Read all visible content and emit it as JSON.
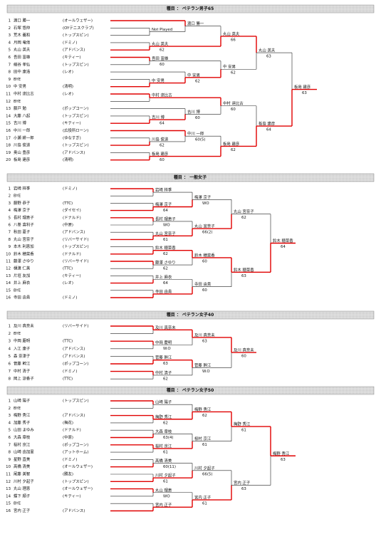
{
  "sections": [
    {
      "header": "種目 ： ベテラン男子65",
      "players": [
        {
          "no": 1,
          "name": "渡口 勝一",
          "club": "(オールウェザー)"
        },
        {
          "no": 2,
          "name": "石塚 悠仲",
          "club": "(OYテニスクラブ)"
        },
        {
          "no": 3,
          "name": "荒木 義和",
          "club": "(トップスピン)"
        },
        {
          "no": 4,
          "name": "月岡 竜他",
          "club": "(ドミノ)"
        },
        {
          "no": 5,
          "name": "丸山 英夫",
          "club": "(アドバンス)"
        },
        {
          "no": 6,
          "name": "吾田 富雄",
          "club": "(キティー)"
        },
        {
          "no": 7,
          "name": "細谷 孝弘",
          "club": "(トップスピン)"
        },
        {
          "no": 8,
          "name": "田中 康浩",
          "club": "(レオ)"
        },
        {
          "no": 9,
          "name": "BYE"
        },
        {
          "no": 10,
          "name": "中 安男",
          "club": "(清明)"
        },
        {
          "no": 11,
          "name": "中村 達比古",
          "club": "(レオ)"
        },
        {
          "no": 12,
          "name": "BYE"
        },
        {
          "no": 13,
          "name": "藤戸 勉",
          "club": "(ポップコーン)"
        },
        {
          "no": 14,
          "name": "大藤 八起",
          "club": "(トップスピン)"
        },
        {
          "no": 15,
          "name": "吉川 博",
          "club": "(キティー)"
        },
        {
          "no": 16,
          "name": "中川 一郎",
          "club": "(広役所ローン)"
        },
        {
          "no": 17,
          "name": "小瀬 耕一郎",
          "club": "(ゆなすぎ)"
        },
        {
          "no": 18,
          "name": "川島 俊道",
          "club": "(トップスピン)"
        },
        {
          "no": 19,
          "name": "奥山 豊彦",
          "club": "(アドバンス)"
        },
        {
          "no": 20,
          "name": "板島 建彦",
          "club": "(清明)"
        }
      ],
      "matches": [
        {
          "name": "Not Played"
        },
        {
          "name": "渡口 勝一"
        },
        {
          "name": "丸山 英夫",
          "score": "62"
        },
        {
          "name": "丸山 英夫",
          "score": "66"
        },
        {
          "name": "吾田 富雄",
          "score": "60"
        },
        {
          "name": "中 安男"
        },
        {
          "name": "中 安男",
          "score": "62"
        },
        {
          "name": "中 安男",
          "score": "62"
        },
        {
          "name": "丸山 英夫",
          "score": "63"
        },
        {
          "name": "中村 達比古"
        },
        {
          "name": "吉川 博",
          "score": "64"
        },
        {
          "name": "吉川 博",
          "score": "60"
        },
        {
          "name": "中村 達比古",
          "score": "60"
        },
        {
          "name": "川島 俊道",
          "score": "62"
        },
        {
          "name": "中川 一郎",
          "score": "60(5)"
        },
        {
          "name": "板島 建彦",
          "score": "60"
        },
        {
          "name": "板島 建彦",
          "score": "62"
        },
        {
          "name": "板島 建彦",
          "score": "64"
        },
        {
          "name": "板島 建彦",
          "score": "63"
        }
      ]
    },
    {
      "header": "種目 ： 一般女子",
      "players": [
        {
          "no": 1,
          "name": "岩崎 梓季",
          "club": "(ドミノ)"
        },
        {
          "no": 2,
          "name": "BYE"
        },
        {
          "no": 3,
          "name": "藤野 恭子",
          "club": "(TTC)"
        },
        {
          "no": 4,
          "name": "梅澤 京子",
          "club": "(ダイセイ)"
        },
        {
          "no": 5,
          "name": "長村 理恵子",
          "club": "(ドナルド)"
        },
        {
          "no": 6,
          "name": "八巻 喜利子",
          "club": "(中原)"
        },
        {
          "no": 7,
          "name": "秋田 夏子",
          "club": "(アドバンス)"
        },
        {
          "no": 8,
          "name": "丸山 宮奈子",
          "club": "(リバーサイド)"
        },
        {
          "no": 9,
          "name": "本木 利恵加",
          "club": "(トップスピン)"
        },
        {
          "no": 10,
          "name": "鈴木 穂菜香",
          "club": "(ドナルド)"
        },
        {
          "no": 11,
          "name": "藤澤 さゆり",
          "club": "(リバーサイド)"
        },
        {
          "no": 12,
          "name": "樋渡 仁美",
          "club": "(TTC)"
        },
        {
          "no": 13,
          "name": "片垣 友加",
          "club": "(キティー)"
        },
        {
          "no": 14,
          "name": "井上 麻衣",
          "club": "(レオ)"
        },
        {
          "no": 15,
          "name": "BYE"
        },
        {
          "no": 16,
          "name": "寺田 由貴",
          "club": "(ドミノ)"
        }
      ],
      "matches": [
        {
          "name": "岩崎 梓季"
        },
        {
          "name": "梅澤 京子",
          "score": "64"
        },
        {
          "name": "梅澤 京子",
          "score": "WO"
        },
        {
          "name": "長村 理恵子",
          "score": "WO"
        },
        {
          "name": "丸山 宮奈子",
          "score": "61"
        },
        {
          "name": "丸山 宮奈子",
          "score": "66(2)"
        },
        {
          "name": "丸山 宮奈子",
          "score": "62"
        },
        {
          "name": "鈴木 穂菜香",
          "score": "62"
        },
        {
          "name": "藤澤 さゆり",
          "score": "62"
        },
        {
          "name": "鈴木 穂菜香",
          "score": "60"
        },
        {
          "name": "井上 麻衣",
          "score": "64"
        },
        {
          "name": "寺田 由貴"
        },
        {
          "name": "寺田 由貴",
          "score": "60"
        },
        {
          "name": "鈴木 穂菜香",
          "score": "63"
        },
        {
          "name": "鈴木 穂菜香",
          "score": "64"
        }
      ]
    },
    {
      "header": "種目 ： ベテラン女子40",
      "players": [
        {
          "no": 1,
          "name": "及川 真奈未",
          "club": "(リバーサイド)"
        },
        {
          "no": 2,
          "name": "BYE"
        },
        {
          "no": 3,
          "name": "中岡 慶明",
          "club": "(TTC)"
        },
        {
          "no": 4,
          "name": "入江 康子",
          "club": "(アドバンス)"
        },
        {
          "no": 5,
          "name": "森 奈津子",
          "club": "(アドバンス)"
        },
        {
          "no": 6,
          "name": "菅藤 幹江",
          "club": "(ポップコーン)"
        },
        {
          "no": 7,
          "name": "中村 清子",
          "club": "(ドミノ)"
        },
        {
          "no": 8,
          "name": "岡上 涼香子",
          "club": "(TTC)"
        }
      ],
      "matches": [
        {
          "name": "及川 真奈未"
        },
        {
          "name": "中岡 慶明",
          "score": "W.O"
        },
        {
          "name": "及川 真奈未",
          "score": "63"
        },
        {
          "name": "菅藤 幹江",
          "score": "63"
        },
        {
          "name": "中村 清子",
          "score": "62"
        },
        {
          "name": "菅藤 幹江",
          "score": "W.O"
        },
        {
          "name": "及川 真奈未",
          "score": "60"
        }
      ]
    },
    {
      "header": "種目 ： ベテラン女子50",
      "players": [
        {
          "no": 1,
          "name": "山崎 陽子",
          "club": "(トップスピン)"
        },
        {
          "no": 2,
          "name": "BYE"
        },
        {
          "no": 3,
          "name": "梅野 秀江",
          "club": "(アドバンス)"
        },
        {
          "no": 4,
          "name": "加藤 秀子",
          "club": "(梅花)"
        },
        {
          "no": 5,
          "name": "山田 まゆみ",
          "club": "(ドナルド)"
        },
        {
          "no": 6,
          "name": "大森 章枝",
          "club": "(中原)"
        },
        {
          "no": 7,
          "name": "桜村 京江",
          "club": "(ポップコーン)"
        },
        {
          "no": 8,
          "name": "山崎 由加里",
          "club": "(アットホーム)"
        },
        {
          "no": 9,
          "name": "星野 直美",
          "club": "(ドミノ)"
        },
        {
          "no": 10,
          "name": "髙橋 清美",
          "club": "(オールウェザー)"
        },
        {
          "no": 11,
          "name": "尾藤 美智",
          "club": "(勝友)"
        },
        {
          "no": 12,
          "name": "川村 夕起子",
          "club": "(トップスピン)"
        },
        {
          "no": 13,
          "name": "丸山 理恵",
          "club": "(オールウェザー)"
        },
        {
          "no": 14,
          "name": "蝶下 順子",
          "club": "(キティー)"
        },
        {
          "no": 15,
          "name": "BYE"
        },
        {
          "no": 16,
          "name": "宮内 正子",
          "club": "(アドバンス)"
        }
      ],
      "matches": [
        {
          "name": "山崎 陽子"
        },
        {
          "name": "梅野 秀江",
          "score": "62"
        },
        {
          "name": "梅野 秀江",
          "score": "62"
        },
        {
          "name": "大森 章枝",
          "score": "63(4)"
        },
        {
          "name": "桜村 京江",
          "score": "61"
        },
        {
          "name": "桜村 京江",
          "score": "61"
        },
        {
          "name": "梅野 秀江",
          "score": "61"
        },
        {
          "name": "髙橋 清美",
          "score": "60(11)"
        },
        {
          "name": "川村 夕起子",
          "score": "61"
        },
        {
          "name": "川村 夕起子",
          "score": "66(5)"
        },
        {
          "name": "丸山 理恵",
          "score": "WO"
        },
        {
          "name": "宮内 正子"
        },
        {
          "name": "宮内 正子",
          "score": "61"
        },
        {
          "name": "宮内 正子",
          "score": "63"
        },
        {
          "name": "梅野 秀江",
          "score": "63"
        }
      ]
    }
  ]
}
